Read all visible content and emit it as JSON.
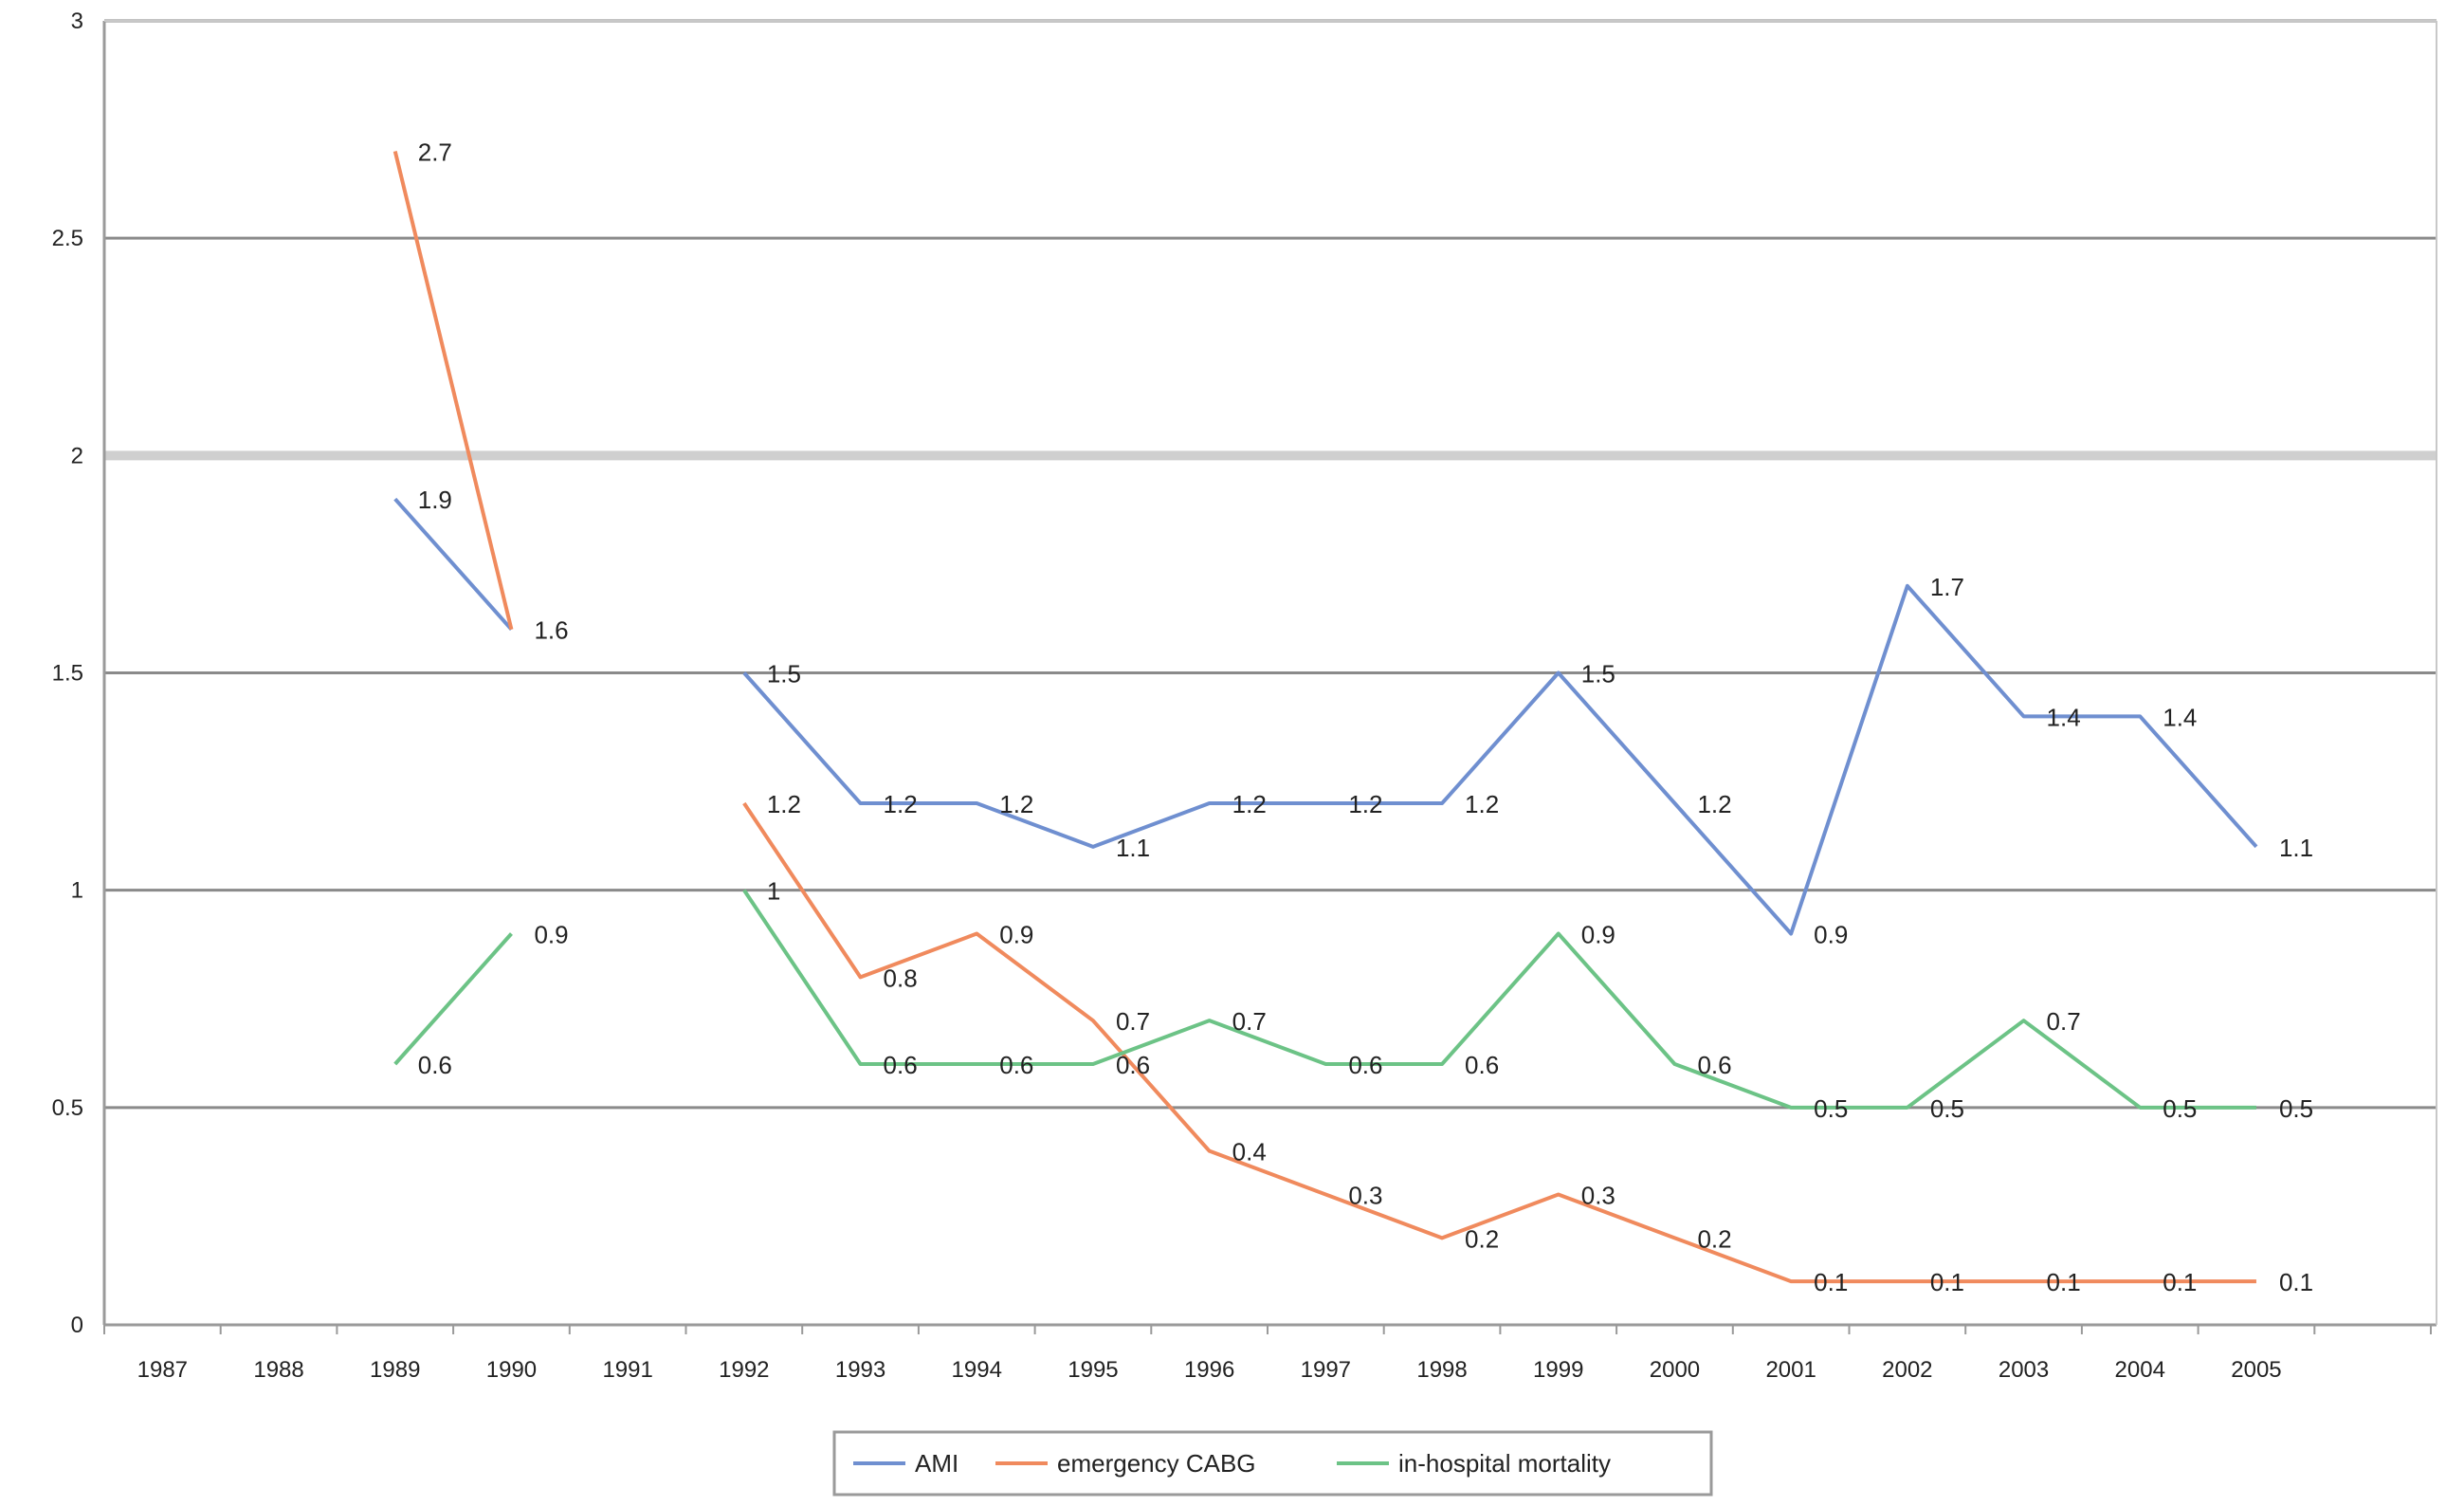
{
  "chart_data": {
    "type": "line",
    "title": "",
    "xlabel": "",
    "ylabel": "",
    "ylim": [
      0,
      3
    ],
    "yticks": [
      "0",
      "0.5",
      "1",
      "1.5",
      "2",
      "2.5",
      "3"
    ],
    "grid": true,
    "legend": "bottom",
    "categories": [
      "1987",
      "1988",
      "1989",
      "1990",
      "1991",
      "1992",
      "1993",
      "1994",
      "1995",
      "1996",
      "1997",
      "1998",
      "1999",
      "2000",
      "2001",
      "2002",
      "2003",
      "2004",
      "2005"
    ],
    "series": [
      {
        "name": "AMI",
        "color": "#6f8fd0",
        "values": [
          null,
          null,
          1.9,
          1.6,
          null,
          1.5,
          1.2,
          1.2,
          1.1,
          1.2,
          1.2,
          1.2,
          1.5,
          1.2,
          0.9,
          1.7,
          1.4,
          1.4,
          1.1
        ],
        "labels": [
          null,
          null,
          "1.9",
          "1.6",
          null,
          "1.5",
          "1.2",
          "1.2",
          "1.1",
          "1.2",
          "1.2",
          "1.2",
          "1.5",
          "1.2",
          "0.9",
          "1.7",
          "1.4",
          "1.4",
          "1.1"
        ]
      },
      {
        "name": "emergency CABG",
        "color": "#f08a5d",
        "values": [
          null,
          null,
          2.7,
          1.6,
          null,
          1.2,
          0.8,
          0.9,
          0.7,
          0.4,
          0.3,
          0.2,
          0.3,
          0.2,
          0.1,
          0.1,
          0.1,
          0.1,
          0.1
        ],
        "labels": [
          null,
          null,
          "2.7",
          null,
          null,
          "1.2",
          "0.8",
          "0.9",
          "0.7",
          "0.4",
          "0.3",
          "0.2",
          "0.3",
          "0.2",
          "0.1",
          "0.1",
          "0.1",
          "0.1",
          "0.1"
        ]
      },
      {
        "name": "in-hospital mortality",
        "color": "#6cc386",
        "values": [
          null,
          null,
          0.6,
          0.9,
          null,
          1.0,
          0.6,
          0.6,
          0.6,
          0.7,
          0.6,
          0.6,
          0.9,
          0.6,
          0.5,
          0.5,
          0.7,
          0.5,
          0.5
        ],
        "labels": [
          null,
          null,
          "0.6",
          "0.9",
          null,
          "1",
          "0.6",
          "0.6",
          "0.6",
          "0.7",
          "0.6",
          "0.6",
          "0.9",
          "0.6",
          "0.5",
          "0.5",
          "0.7",
          "0.5",
          "0.5"
        ]
      }
    ]
  }
}
